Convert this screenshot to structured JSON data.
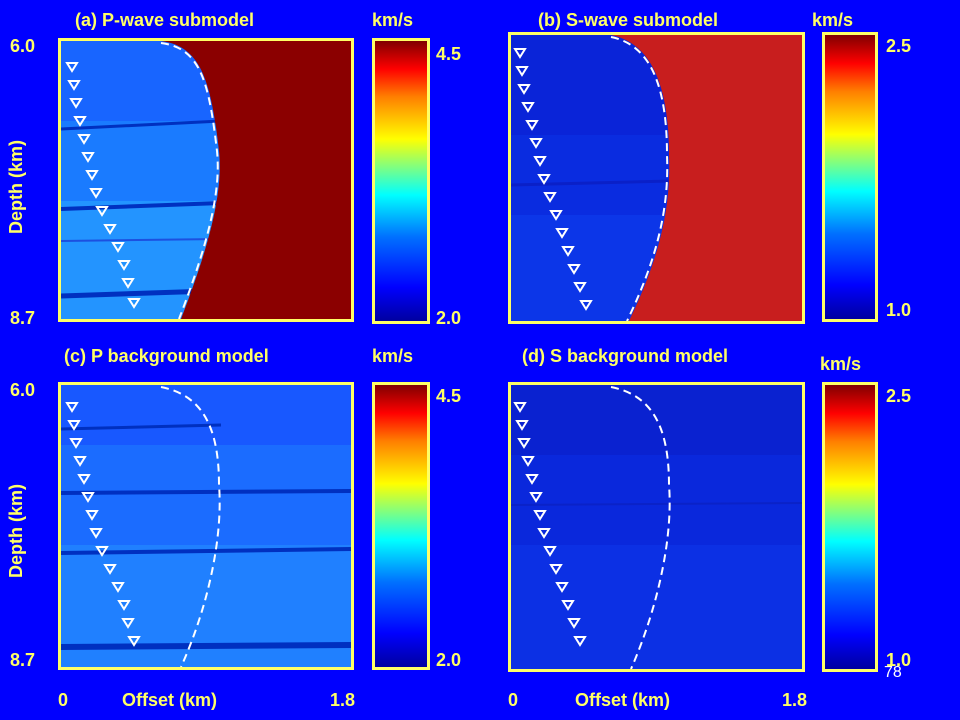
{
  "slide": {
    "page_number": "78",
    "colors": {
      "background": "#0000ff",
      "label": "#ffff66",
      "frame": "#ffff66"
    }
  },
  "panels": {
    "a": {
      "title": "(a) P-wave submodel",
      "unit": "km/s",
      "cbar_max": "4.5",
      "cbar_min": "2.0",
      "depth_top": "6.0",
      "depth_bottom": "8.7",
      "ylabel": "Depth (km)"
    },
    "b": {
      "title": "(b) S-wave submodel",
      "unit": "km/s",
      "cbar_max": "2.5",
      "cbar_min": "1.0"
    },
    "c": {
      "title": "(c) P background model",
      "unit": "km/s",
      "cbar_max": "4.5",
      "cbar_min": "2.0",
      "depth_top": "6.0",
      "depth_bottom": "8.7",
      "ylabel": "Depth (km)",
      "x_min": "0",
      "x_max": "1.8",
      "xlabel": "Offset (km)"
    },
    "d": {
      "title": "(d) S background model",
      "unit": "km/s",
      "cbar_max": "2.5",
      "cbar_min": "1.0",
      "x_min": "0",
      "x_max": "1.8",
      "xlabel": "Offset (km)"
    }
  }
}
